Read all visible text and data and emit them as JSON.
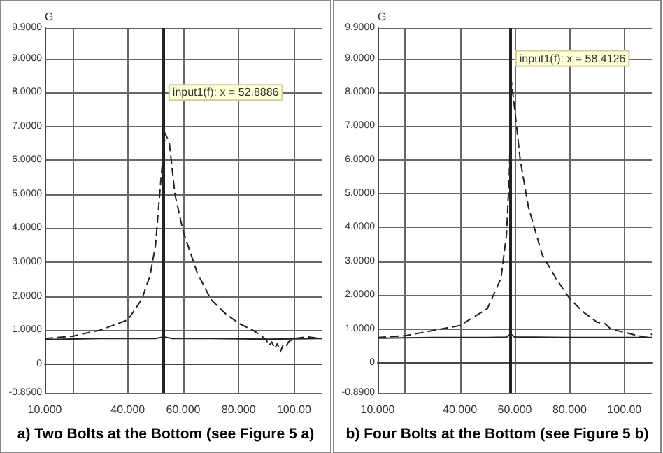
{
  "chart_data": [
    {
      "type": "line",
      "title": "a) Two Bolts at the Bottom (see Figure 5 a)",
      "ylabel": "G",
      "xlim": [
        10,
        110
      ],
      "xticks": [
        {
          "value": 10,
          "label": "10.000"
        },
        {
          "value": 20,
          "label": null
        },
        {
          "value": 40,
          "label": "40.000"
        },
        {
          "value": 60,
          "label": "60.000"
        },
        {
          "value": 80,
          "label": "80.000"
        },
        {
          "value": 100,
          "label": "100.00"
        }
      ],
      "ylim": [
        -0.85,
        9.9
      ],
      "yticks": [
        {
          "value": -0.85,
          "label": "-0.8500"
        },
        {
          "value": 0,
          "label": "0"
        },
        {
          "value": 1,
          "label": "1.0000"
        },
        {
          "value": 2,
          "label": "2.0000"
        },
        {
          "value": 3,
          "label": "3.0000"
        },
        {
          "value": 4,
          "label": "4.0000"
        },
        {
          "value": 5,
          "label": "5.0000"
        },
        {
          "value": 6,
          "label": "6.0000"
        },
        {
          "value": 7,
          "label": "7.0000"
        },
        {
          "value": 8,
          "label": "8.0000"
        },
        {
          "value": 9,
          "label": "9.0000"
        },
        {
          "value": 9.9,
          "label": "9.9000"
        }
      ],
      "grid": true,
      "marker": "none",
      "series": [
        {
          "color": "#222222",
          "line_style": "dashed",
          "x": [
            10,
            20,
            30,
            40,
            45,
            48,
            50,
            52,
            53.5,
            55,
            57,
            60,
            65,
            70,
            75,
            80,
            85,
            88,
            90,
            91,
            92,
            93,
            94,
            95,
            96,
            97,
            98,
            100,
            105,
            110
          ],
          "values": [
            0.75,
            0.82,
            1.0,
            1.3,
            1.9,
            2.6,
            3.5,
            5.5,
            6.8,
            6.5,
            5.0,
            3.9,
            2.7,
            1.9,
            1.5,
            1.2,
            1.0,
            0.85,
            0.7,
            0.55,
            0.65,
            0.45,
            0.6,
            0.35,
            0.55,
            0.5,
            0.65,
            0.75,
            0.8,
            0.75
          ]
        },
        {
          "color": "#222222",
          "line_style": "solid",
          "x": [
            10,
            30,
            50,
            53,
            56,
            70,
            90,
            110
          ],
          "values": [
            0.72,
            0.75,
            0.75,
            0.8,
            0.75,
            0.75,
            0.73,
            0.75
          ]
        }
      ],
      "ref_lines": [
        {
          "axis": "x",
          "value": 52.8886,
          "color": "#222222",
          "line_style": "solid"
        }
      ],
      "annotations": [
        {
          "text": "input1(f): x = 52.8886",
          "x": 52.8886,
          "y": 8
        }
      ]
    },
    {
      "type": "line",
      "title": "b) Four Bolts at the Bottom (see Figure 5 b)",
      "ylabel": "G",
      "xlim": [
        10,
        110
      ],
      "xticks": [
        {
          "value": 10,
          "label": "10.000"
        },
        {
          "value": 20,
          "label": null
        },
        {
          "value": 40,
          "label": "40.000"
        },
        {
          "value": 60,
          "label": "60.000"
        },
        {
          "value": 80,
          "label": "80.000"
        },
        {
          "value": 100,
          "label": "100.00"
        }
      ],
      "ylim": [
        -0.89,
        9.9
      ],
      "yticks": [
        {
          "value": -0.89,
          "label": "-0.8900"
        },
        {
          "value": 0,
          "label": "0"
        },
        {
          "value": 1,
          "label": "1.0000"
        },
        {
          "value": 2,
          "label": "2.0000"
        },
        {
          "value": 3,
          "label": "3.0000"
        },
        {
          "value": 4,
          "label": "4.0000"
        },
        {
          "value": 5,
          "label": "5.0000"
        },
        {
          "value": 6,
          "label": "6.0000"
        },
        {
          "value": 7,
          "label": "7.0000"
        },
        {
          "value": 8,
          "label": "8.0000"
        },
        {
          "value": 9,
          "label": "9.0000"
        },
        {
          "value": 9.9,
          "label": "9.9000"
        }
      ],
      "grid": true,
      "marker": "none",
      "series": [
        {
          "color": "#222222",
          "line_style": "dashed",
          "x": [
            10,
            20,
            30,
            40,
            50,
            55,
            57,
            58,
            58.8,
            60,
            62,
            65,
            70,
            75,
            80,
            85,
            90,
            93,
            95,
            100,
            105,
            108,
            110
          ],
          "values": [
            0.75,
            0.8,
            0.95,
            1.1,
            1.6,
            2.5,
            3.8,
            5.5,
            8.3,
            7.5,
            6.0,
            4.6,
            3.2,
            2.5,
            1.9,
            1.5,
            1.2,
            1.15,
            1.0,
            0.9,
            0.8,
            0.75,
            0.85
          ]
        },
        {
          "color": "#222222",
          "line_style": "solid",
          "x": [
            10,
            30,
            50,
            57,
            58.5,
            60,
            80,
            110
          ],
          "values": [
            0.73,
            0.75,
            0.75,
            0.76,
            0.85,
            0.76,
            0.75,
            0.75
          ]
        }
      ],
      "ref_lines": [
        {
          "axis": "x",
          "value": 58.4126,
          "color": "#222222",
          "line_style": "solid"
        }
      ],
      "annotations": [
        {
          "text": "input1(f): x = 58.4126",
          "x": 58.4126,
          "y": 9
        }
      ]
    }
  ]
}
